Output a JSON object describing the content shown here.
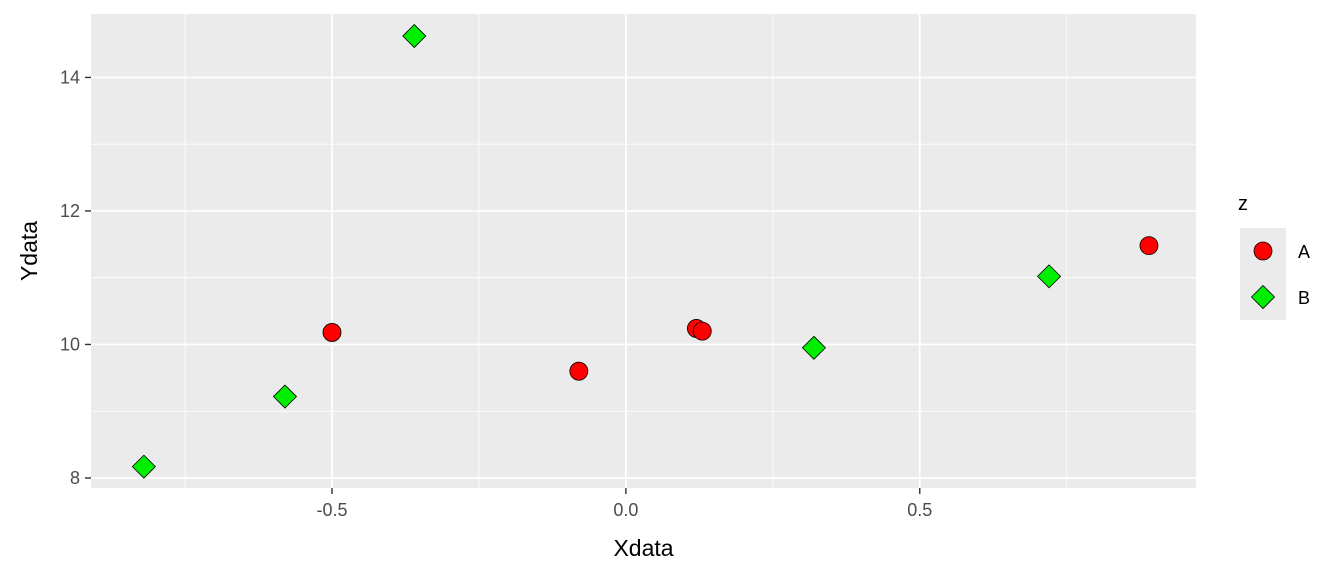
{
  "chart_data": {
    "type": "scatter",
    "xlabel": "Xdata",
    "ylabel": "Ydata",
    "xlim": [
      -0.91,
      0.97
    ],
    "ylim": [
      7.85,
      14.95
    ],
    "x_ticks": [
      -0.5,
      0.0,
      0.5
    ],
    "x_tick_labels": [
      "-0.5",
      "0.0",
      "0.5"
    ],
    "x_minor_ticks": [
      -0.75,
      -0.25,
      0.25,
      0.75
    ],
    "y_ticks": [
      8,
      10,
      12,
      14
    ],
    "y_tick_labels": [
      "8",
      "10",
      "12",
      "14"
    ],
    "y_minor_ticks": [
      9,
      11,
      13
    ],
    "grid": true,
    "panel_background": "#ebebeb",
    "grid_color": "#ffffff",
    "legend": {
      "title": "z",
      "placement": "right"
    },
    "series": [
      {
        "name": "A",
        "shape": "circle",
        "color": "#ff0000",
        "points": [
          {
            "x": -0.5,
            "y": 10.18
          },
          {
            "x": -0.08,
            "y": 9.6
          },
          {
            "x": 0.12,
            "y": 10.24
          },
          {
            "x": 0.13,
            "y": 10.2
          },
          {
            "x": 0.89,
            "y": 11.48
          }
        ]
      },
      {
        "name": "B",
        "shape": "diamond",
        "color": "#00ee00",
        "points": [
          {
            "x": -0.82,
            "y": 8.17
          },
          {
            "x": -0.58,
            "y": 9.22
          },
          {
            "x": -0.36,
            "y": 14.62
          },
          {
            "x": 0.32,
            "y": 9.95
          },
          {
            "x": 0.72,
            "y": 11.02
          }
        ]
      }
    ]
  }
}
